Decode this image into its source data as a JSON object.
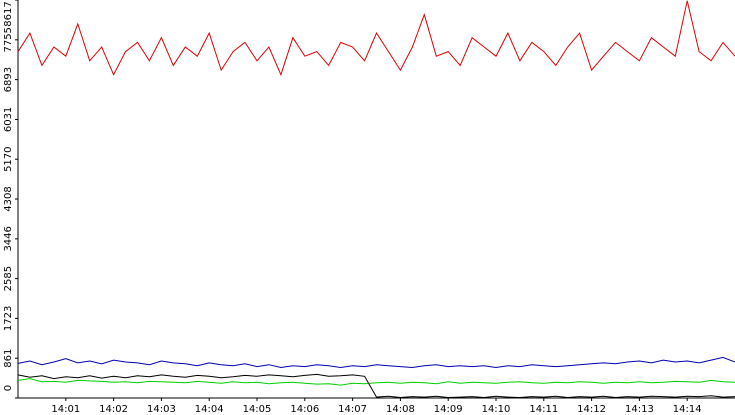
{
  "chart_data": {
    "type": "line",
    "xlim": [
      840,
      855
    ],
    "xticks": [
      {
        "value": 841,
        "label": "14:01"
      },
      {
        "value": 842,
        "label": "14:02"
      },
      {
        "value": 843,
        "label": "14:03"
      },
      {
        "value": 844,
        "label": "14:04"
      },
      {
        "value": 845,
        "label": "14:05"
      },
      {
        "value": 846,
        "label": "14:06"
      },
      {
        "value": 847,
        "label": "14:07"
      },
      {
        "value": 848,
        "label": "14:08"
      },
      {
        "value": 849,
        "label": "14:09"
      },
      {
        "value": 850,
        "label": "14:10"
      },
      {
        "value": 851,
        "label": "14:11"
      },
      {
        "value": 852,
        "label": "14:12"
      },
      {
        "value": 853,
        "label": "14:13"
      },
      {
        "value": 854,
        "label": "14:14"
      }
    ],
    "ylim": [
      0,
      8617
    ],
    "yticks": [
      0,
      861,
      1723,
      2585,
      3446,
      4308,
      5170,
      6031,
      6893,
      7755,
      8617
    ],
    "x": [
      840,
      840.25,
      840.5,
      840.75,
      841,
      841.25,
      841.5,
      841.75,
      842,
      842.25,
      842.5,
      842.75,
      843,
      843.25,
      843.5,
      843.75,
      844,
      844.25,
      844.5,
      844.75,
      845,
      845.25,
      845.5,
      845.75,
      846,
      846.25,
      846.5,
      846.75,
      847,
      847.25,
      847.5,
      847.75,
      848,
      848.25,
      848.5,
      848.75,
      849,
      849.25,
      849.5,
      849.75,
      850,
      850.25,
      850.5,
      850.75,
      851,
      851.25,
      851.5,
      851.75,
      852,
      852.25,
      852.5,
      852.75,
      853,
      853.25,
      853.5,
      853.75,
      854,
      854.25,
      854.5,
      854.75,
      855
    ],
    "series": [
      {
        "color": "#e00000",
        "values": [
          7500,
          7900,
          7200,
          7600,
          7400,
          8100,
          7300,
          7600,
          7000,
          7500,
          7700,
          7300,
          7800,
          7200,
          7600,
          7400,
          7900,
          7100,
          7500,
          7700,
          7300,
          7600,
          7000,
          7800,
          7400,
          7500,
          7200,
          7700,
          7600,
          7300,
          7900,
          7500,
          7100,
          7600,
          8300,
          7400,
          7500,
          7200,
          7800,
          7600,
          7400,
          7900,
          7300,
          7700,
          7500,
          7200,
          7600,
          7900,
          7100,
          7400,
          7700,
          7500,
          7300,
          7800,
          7600,
          7400,
          8600,
          7500,
          7300,
          7700,
          7400
        ]
      },
      {
        "color": "#0000b0",
        "values": [
          750,
          800,
          720,
          780,
          850,
          760,
          800,
          740,
          820,
          780,
          760,
          720,
          800,
          760,
          740,
          700,
          760,
          720,
          700,
          740,
          680,
          720,
          660,
          700,
          680,
          720,
          700,
          660,
          700,
          680,
          720,
          700,
          680,
          660,
          700,
          720,
          680,
          700,
          680,
          700,
          660,
          700,
          680,
          720,
          700,
          680,
          700,
          720,
          740,
          760,
          740,
          780,
          800,
          760,
          820,
          780,
          800,
          760,
          820,
          880,
          780
        ]
      },
      {
        "color": "#00d000",
        "values": [
          380,
          420,
          350,
          360,
          340,
          380,
          370,
          360,
          340,
          350,
          330,
          360,
          350,
          340,
          330,
          360,
          340,
          320,
          350,
          330,
          340,
          310,
          330,
          340,
          320,
          300,
          310,
          280,
          320,
          310,
          330,
          340,
          320,
          340,
          330,
          310,
          350,
          320,
          340,
          330,
          320,
          340,
          350,
          330,
          320,
          340,
          330,
          350,
          340,
          320,
          340,
          330,
          350,
          330,
          340,
          360,
          350,
          340,
          380,
          350,
          340
        ]
      },
      {
        "color": "#000000",
        "values": [
          500,
          450,
          480,
          420,
          460,
          440,
          480,
          430,
          470,
          440,
          480,
          460,
          500,
          470,
          450,
          490,
          470,
          440,
          460,
          490,
          470,
          500,
          480,
          460,
          490,
          510,
          470,
          480,
          500,
          470,
          20,
          40,
          10,
          30,
          20,
          40,
          10,
          20,
          30,
          10,
          40,
          20,
          10,
          30,
          20,
          40,
          10,
          30,
          20,
          40,
          10,
          30,
          20,
          40,
          30,
          20,
          40,
          30,
          50,
          20,
          30
        ]
      }
    ]
  }
}
